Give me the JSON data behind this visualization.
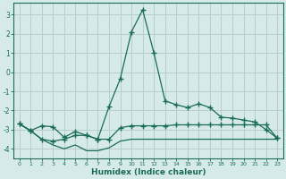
{
  "xlabel": "Humidex (Indice chaleur)",
  "background_color": "#d6eaea",
  "grid_color": "#b8cece",
  "line_color": "#1a6b5a",
  "xlim": [
    -0.5,
    23.5
  ],
  "ylim": [
    -4.5,
    3.6
  ],
  "yticks": [
    -4,
    -3,
    -2,
    -1,
    0,
    1,
    2,
    3
  ],
  "xticks": [
    0,
    1,
    2,
    3,
    4,
    5,
    6,
    7,
    8,
    9,
    10,
    11,
    12,
    13,
    14,
    15,
    16,
    17,
    18,
    19,
    20,
    21,
    22,
    23
  ],
  "line1_x": [
    0,
    1,
    2,
    3,
    4,
    5,
    6,
    7,
    8,
    9,
    10,
    11,
    12,
    13,
    14,
    15,
    16,
    17,
    18,
    19,
    20,
    21,
    22,
    23
  ],
  "line1_y": [
    -2.7,
    -3.05,
    -2.8,
    -2.85,
    -3.4,
    -3.1,
    -3.3,
    -3.5,
    -1.8,
    -0.35,
    2.1,
    3.25,
    1.0,
    -1.5,
    -1.7,
    -1.85,
    -1.65,
    -1.85,
    -2.35,
    -2.4,
    -2.5,
    -2.6,
    -3.0,
    -3.45
  ],
  "line2_x": [
    0,
    1,
    2,
    3,
    4,
    5,
    6,
    7,
    8,
    9,
    10,
    11,
    12,
    13,
    14,
    15,
    16,
    17,
    18,
    19,
    20,
    21,
    22,
    23
  ],
  "line2_y": [
    -2.7,
    -3.05,
    -3.5,
    -3.6,
    -3.5,
    -3.3,
    -3.3,
    -3.5,
    -3.5,
    -2.9,
    -2.8,
    -2.8,
    -2.8,
    -2.8,
    -2.75,
    -2.75,
    -2.75,
    -2.75,
    -2.75,
    -2.75,
    -2.75,
    -2.75,
    -2.75,
    -3.45
  ],
  "line3_x": [
    0,
    1,
    2,
    3,
    4,
    5,
    6,
    7,
    8,
    9,
    10,
    11,
    12,
    13,
    14,
    15,
    16,
    17,
    18,
    19,
    20,
    21,
    22,
    23
  ],
  "line3_y": [
    -2.7,
    -3.05,
    -3.5,
    -3.8,
    -4.0,
    -3.8,
    -4.1,
    -4.1,
    -3.95,
    -3.6,
    -3.5,
    -3.5,
    -3.5,
    -3.5,
    -3.5,
    -3.5,
    -3.5,
    -3.5,
    -3.5,
    -3.5,
    -3.5,
    -3.5,
    -3.5,
    -3.5
  ]
}
